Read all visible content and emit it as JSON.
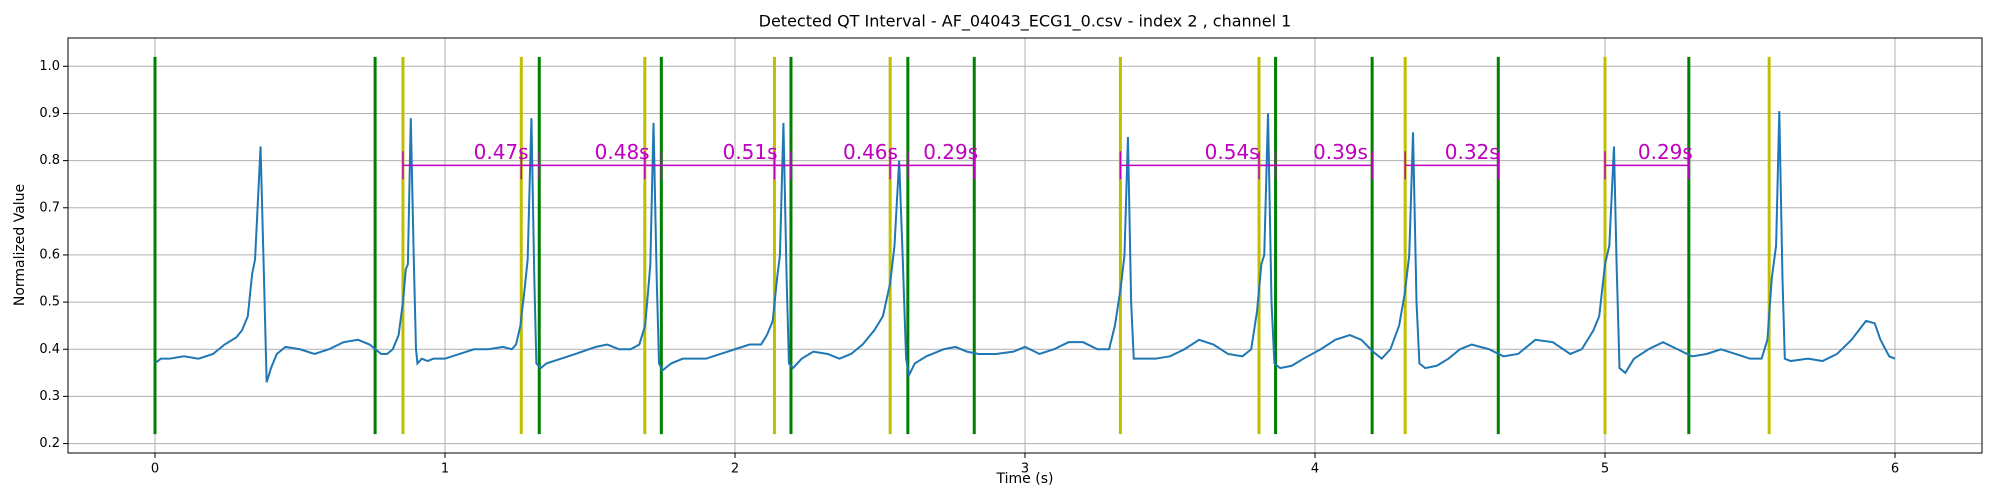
{
  "chart_data": {
    "type": "line",
    "title": "Detected QT Interval - AF_04043_ECG1_0.csv - index 2 , channel 1",
    "xlabel": "Time (s)",
    "ylabel": "Normalized Value",
    "xlim": [
      -0.3,
      6.3
    ],
    "ylim": [
      0.18,
      1.06
    ],
    "xticks": [
      0,
      1,
      2,
      3,
      4,
      5,
      6
    ],
    "yticks": [
      0.2,
      0.3,
      0.4,
      0.5,
      0.6,
      0.7,
      0.8,
      0.9,
      {
        "value": 1,
        "label": "1.0"
      }
    ],
    "grid": true,
    "x": [
      0,
      0.02,
      0.05,
      0.1,
      0.15,
      0.2,
      0.24,
      0.28,
      0.3,
      0.32,
      0.335,
      0.345,
      0.364,
      0.375,
      0.38,
      0.385,
      0.395,
      0.4,
      0.42,
      0.45,
      0.5,
      0.55,
      0.6,
      0.65,
      0.7,
      0.74,
      0.78,
      0.8,
      0.82,
      0.84,
      0.855,
      0.865,
      0.872,
      0.882,
      0.892,
      0.9,
      0.905,
      0.92,
      0.94,
      0.96,
      1.0,
      1.05,
      1.1,
      1.15,
      1.2,
      1.23,
      1.245,
      1.26,
      1.275,
      1.285,
      1.298,
      1.308,
      1.315,
      1.33,
      1.35,
      1.4,
      1.45,
      1.52,
      1.56,
      1.6,
      1.64,
      1.67,
      1.69,
      1.7,
      1.708,
      1.719,
      1.73,
      1.738,
      1.75,
      1.78,
      1.82,
      1.9,
      1.95,
      2.0,
      2.05,
      2.09,
      2.11,
      2.13,
      2.145,
      2.155,
      2.167,
      2.178,
      2.186,
      2.2,
      2.23,
      2.27,
      2.32,
      2.36,
      2.4,
      2.44,
      2.48,
      2.51,
      2.535,
      2.55,
      2.566,
      2.578,
      2.59,
      2.6,
      2.62,
      2.66,
      2.72,
      2.76,
      2.8,
      2.84,
      2.9,
      2.96,
      3.0,
      3.05,
      3.1,
      3.15,
      3.2,
      3.25,
      3.29,
      3.31,
      3.33,
      3.343,
      3.355,
      3.366,
      3.375,
      3.4,
      3.45,
      3.5,
      3.55,
      3.6,
      3.65,
      3.7,
      3.75,
      3.78,
      3.8,
      3.815,
      3.825,
      3.838,
      3.85,
      3.86,
      3.88,
      3.92,
      3.96,
      4.02,
      4.07,
      4.12,
      4.16,
      4.2,
      4.23,
      4.26,
      4.29,
      4.31,
      4.325,
      4.338,
      4.35,
      4.36,
      4.38,
      4.42,
      4.46,
      4.5,
      4.54,
      4.6,
      4.65,
      4.7,
      4.76,
      4.82,
      4.88,
      4.92,
      4.96,
      4.98,
      5.0,
      5.015,
      5.031,
      5.04,
      5.05,
      5.07,
      5.1,
      5.15,
      5.2,
      5.25,
      5.3,
      5.35,
      5.4,
      5.45,
      5.5,
      5.54,
      5.56,
      5.575,
      5.59,
      5.601,
      5.612,
      5.62,
      5.64,
      5.7,
      5.75,
      5.8,
      5.85,
      5.9,
      5.93,
      5.95,
      5.98,
      6.0
    ],
    "series": [
      {
        "color": "#1f77b4",
        "values": [
          0.37,
          0.38,
          0.38,
          0.385,
          0.38,
          0.39,
          0.41,
          0.425,
          0.44,
          0.47,
          0.56,
          0.59,
          0.83,
          0.57,
          0.45,
          0.33,
          0.35,
          0.36,
          0.39,
          0.405,
          0.4,
          0.39,
          0.4,
          0.415,
          0.42,
          0.41,
          0.39,
          0.39,
          0.4,
          0.43,
          0.5,
          0.57,
          0.58,
          0.89,
          0.6,
          0.4,
          0.37,
          0.38,
          0.375,
          0.38,
          0.38,
          0.39,
          0.4,
          0.4,
          0.405,
          0.4,
          0.41,
          0.45,
          0.53,
          0.59,
          0.89,
          0.55,
          0.37,
          0.36,
          0.37,
          0.38,
          0.39,
          0.405,
          0.41,
          0.4,
          0.4,
          0.41,
          0.45,
          0.52,
          0.58,
          0.88,
          0.55,
          0.37,
          0.355,
          0.37,
          0.38,
          0.38,
          0.39,
          0.4,
          0.41,
          0.41,
          0.43,
          0.46,
          0.55,
          0.6,
          0.88,
          0.55,
          0.37,
          0.36,
          0.38,
          0.395,
          0.39,
          0.38,
          0.39,
          0.41,
          0.44,
          0.47,
          0.54,
          0.62,
          0.8,
          0.6,
          0.38,
          0.345,
          0.37,
          0.385,
          0.4,
          0.405,
          0.395,
          0.39,
          0.39,
          0.395,
          0.405,
          0.39,
          0.4,
          0.415,
          0.415,
          0.4,
          0.4,
          0.45,
          0.53,
          0.6,
          0.85,
          0.5,
          0.38,
          0.38,
          0.38,
          0.385,
          0.4,
          0.42,
          0.41,
          0.39,
          0.385,
          0.4,
          0.48,
          0.58,
          0.6,
          0.9,
          0.5,
          0.37,
          0.36,
          0.365,
          0.38,
          0.4,
          0.42,
          0.43,
          0.42,
          0.395,
          0.38,
          0.4,
          0.45,
          0.52,
          0.6,
          0.86,
          0.5,
          0.37,
          0.36,
          0.365,
          0.38,
          0.4,
          0.41,
          0.4,
          0.385,
          0.39,
          0.42,
          0.415,
          0.39,
          0.4,
          0.44,
          0.47,
          0.58,
          0.62,
          0.83,
          0.58,
          0.36,
          0.35,
          0.38,
          0.4,
          0.415,
          0.4,
          0.385,
          0.39,
          0.4,
          0.39,
          0.38,
          0.38,
          0.42,
          0.55,
          0.62,
          0.905,
          0.55,
          0.38,
          0.375,
          0.38,
          0.375,
          0.39,
          0.42,
          0.46,
          0.455,
          0.42,
          0.385,
          0.38
        ]
      }
    ],
    "vline_range": [
      0.22,
      1.02
    ],
    "vlines": [
      {
        "color": "#008000",
        "x": [
          0,
          0.759,
          1.325,
          1.746,
          2.193,
          2.596,
          2.825,
          3.864,
          4.197,
          4.632,
          5.289
        ]
      },
      {
        "color": "#bfbf00",
        "x": [
          0.855,
          1.263,
          1.689,
          2.136,
          2.535,
          3.329,
          3.807,
          4.311,
          5.0,
          5.566
        ]
      }
    ],
    "interval_color": "#bf00bf",
    "intervals": [
      {
        "label": "0.47s",
        "start": 0.855,
        "end": 1.325,
        "y": 0.79
      },
      {
        "label": "0.48s",
        "start": 1.263,
        "end": 1.746,
        "y": 0.79
      },
      {
        "label": "0.51s",
        "start": 1.689,
        "end": 2.193,
        "y": 0.79
      },
      {
        "label": "0.46s",
        "start": 2.136,
        "end": 2.596,
        "y": 0.79
      },
      {
        "label": "0.29s",
        "start": 2.535,
        "end": 2.825,
        "y": 0.79
      },
      {
        "label": "0.54s",
        "start": 3.329,
        "end": 3.864,
        "y": 0.79
      },
      {
        "label": "0.39s",
        "start": 3.807,
        "end": 4.197,
        "y": 0.79
      },
      {
        "label": "0.32s",
        "start": 4.311,
        "end": 4.632,
        "y": 0.79
      },
      {
        "label": "0.29s",
        "start": 5.0,
        "end": 5.289,
        "y": 0.79
      }
    ]
  }
}
